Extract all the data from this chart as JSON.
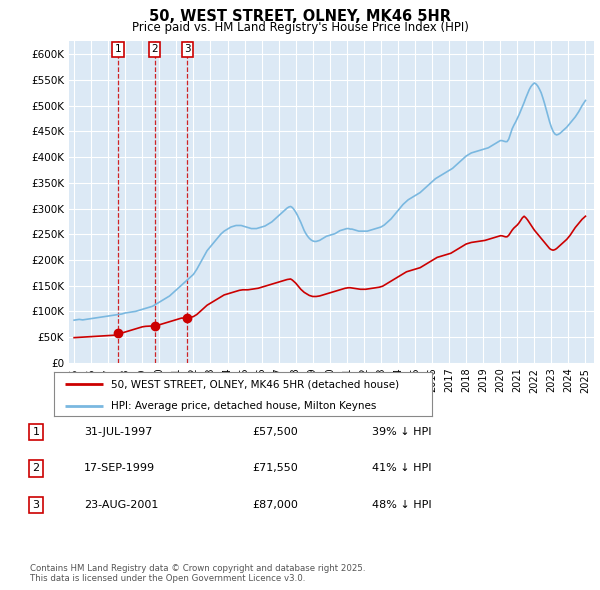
{
  "title": "50, WEST STREET, OLNEY, MK46 5HR",
  "subtitle": "Price paid vs. HM Land Registry's House Price Index (HPI)",
  "ylabel_ticks": [
    "£0",
    "£50K",
    "£100K",
    "£150K",
    "£200K",
    "£250K",
    "£300K",
    "£350K",
    "£400K",
    "£450K",
    "£500K",
    "£550K",
    "£600K"
  ],
  "ylim": [
    0,
    625000
  ],
  "ytick_vals": [
    0,
    50000,
    100000,
    150000,
    200000,
    250000,
    300000,
    350000,
    400000,
    450000,
    500000,
    550000,
    600000
  ],
  "xlim_start": 1994.7,
  "xlim_end": 2025.5,
  "sales": [
    {
      "year": 1997.58,
      "price": 57500,
      "label": "1"
    },
    {
      "year": 1999.72,
      "price": 71550,
      "label": "2"
    },
    {
      "year": 2001.65,
      "price": 87000,
      "label": "3"
    }
  ],
  "hpi_line_color": "#7ab8e0",
  "sale_line_color": "#cc0000",
  "plot_bg_color": "#dce9f5",
  "fig_bg_color": "#ffffff",
  "grid_color": "#ffffff",
  "sale_marker_color": "#cc0000",
  "legend_items": [
    "50, WEST STREET, OLNEY, MK46 5HR (detached house)",
    "HPI: Average price, detached house, Milton Keynes"
  ],
  "table_rows": [
    {
      "num": "1",
      "date": "31-JUL-1997",
      "price": "£57,500",
      "pct": "39% ↓ HPI"
    },
    {
      "num": "2",
      "date": "17-SEP-1999",
      "price": "£71,550",
      "pct": "41% ↓ HPI"
    },
    {
      "num": "3",
      "date": "23-AUG-2001",
      "price": "£87,000",
      "pct": "48% ↓ HPI"
    }
  ],
  "footer": "Contains HM Land Registry data © Crown copyright and database right 2025.\nThis data is licensed under the Open Government Licence v3.0.",
  "xtick_years": [
    1995,
    1996,
    1997,
    1998,
    1999,
    2000,
    2001,
    2002,
    2003,
    2004,
    2005,
    2006,
    2007,
    2008,
    2009,
    2010,
    2011,
    2012,
    2013,
    2014,
    2015,
    2016,
    2017,
    2018,
    2019,
    2020,
    2021,
    2022,
    2023,
    2024,
    2025
  ],
  "hpi_years": [
    1995.0,
    1995.1,
    1995.2,
    1995.3,
    1995.4,
    1995.5,
    1995.6,
    1995.7,
    1995.8,
    1995.9,
    1996.0,
    1996.1,
    1996.2,
    1996.3,
    1996.4,
    1996.5,
    1996.6,
    1996.7,
    1996.8,
    1996.9,
    1997.0,
    1997.1,
    1997.2,
    1997.3,
    1997.4,
    1997.5,
    1997.6,
    1997.7,
    1997.8,
    1997.9,
    1998.0,
    1998.1,
    1998.2,
    1998.3,
    1998.4,
    1998.5,
    1998.6,
    1998.7,
    1998.8,
    1998.9,
    1999.0,
    1999.1,
    1999.2,
    1999.3,
    1999.4,
    1999.5,
    1999.6,
    1999.7,
    1999.8,
    1999.9,
    2000.0,
    2000.1,
    2000.2,
    2000.3,
    2000.4,
    2000.5,
    2000.6,
    2000.7,
    2000.8,
    2000.9,
    2001.0,
    2001.1,
    2001.2,
    2001.3,
    2001.4,
    2001.5,
    2001.6,
    2001.7,
    2001.8,
    2001.9,
    2002.0,
    2002.1,
    2002.2,
    2002.3,
    2002.4,
    2002.5,
    2002.6,
    2002.7,
    2002.8,
    2002.9,
    2003.0,
    2003.1,
    2003.2,
    2003.3,
    2003.4,
    2003.5,
    2003.6,
    2003.7,
    2003.8,
    2003.9,
    2004.0,
    2004.1,
    2004.2,
    2004.3,
    2004.4,
    2004.5,
    2004.6,
    2004.7,
    2004.8,
    2004.9,
    2005.0,
    2005.1,
    2005.2,
    2005.3,
    2005.4,
    2005.5,
    2005.6,
    2005.7,
    2005.8,
    2005.9,
    2006.0,
    2006.1,
    2006.2,
    2006.3,
    2006.4,
    2006.5,
    2006.6,
    2006.7,
    2006.8,
    2006.9,
    2007.0,
    2007.1,
    2007.2,
    2007.3,
    2007.4,
    2007.5,
    2007.6,
    2007.7,
    2007.8,
    2007.9,
    2008.0,
    2008.1,
    2008.2,
    2008.3,
    2008.4,
    2008.5,
    2008.6,
    2008.7,
    2008.8,
    2008.9,
    2009.0,
    2009.1,
    2009.2,
    2009.3,
    2009.4,
    2009.5,
    2009.6,
    2009.7,
    2009.8,
    2009.9,
    2010.0,
    2010.1,
    2010.2,
    2010.3,
    2010.4,
    2010.5,
    2010.6,
    2010.7,
    2010.8,
    2010.9,
    2011.0,
    2011.1,
    2011.2,
    2011.3,
    2011.4,
    2011.5,
    2011.6,
    2011.7,
    2011.8,
    2011.9,
    2012.0,
    2012.1,
    2012.2,
    2012.3,
    2012.4,
    2012.5,
    2012.6,
    2012.7,
    2012.8,
    2012.9,
    2013.0,
    2013.1,
    2013.2,
    2013.3,
    2013.4,
    2013.5,
    2013.6,
    2013.7,
    2013.8,
    2013.9,
    2014.0,
    2014.1,
    2014.2,
    2014.3,
    2014.4,
    2014.5,
    2014.6,
    2014.7,
    2014.8,
    2014.9,
    2015.0,
    2015.1,
    2015.2,
    2015.3,
    2015.4,
    2015.5,
    2015.6,
    2015.7,
    2015.8,
    2015.9,
    2016.0,
    2016.1,
    2016.2,
    2016.3,
    2016.4,
    2016.5,
    2016.6,
    2016.7,
    2016.8,
    2016.9,
    2017.0,
    2017.1,
    2017.2,
    2017.3,
    2017.4,
    2017.5,
    2017.6,
    2017.7,
    2017.8,
    2017.9,
    2018.0,
    2018.1,
    2018.2,
    2018.3,
    2018.4,
    2018.5,
    2018.6,
    2018.7,
    2018.8,
    2018.9,
    2019.0,
    2019.1,
    2019.2,
    2019.3,
    2019.4,
    2019.5,
    2019.6,
    2019.7,
    2019.8,
    2019.9,
    2020.0,
    2020.1,
    2020.2,
    2020.3,
    2020.4,
    2020.5,
    2020.6,
    2020.7,
    2020.8,
    2020.9,
    2021.0,
    2021.1,
    2021.2,
    2021.3,
    2021.4,
    2021.5,
    2021.6,
    2021.7,
    2021.8,
    2021.9,
    2022.0,
    2022.1,
    2022.2,
    2022.3,
    2022.4,
    2022.5,
    2022.6,
    2022.7,
    2022.8,
    2022.9,
    2023.0,
    2023.1,
    2023.2,
    2023.3,
    2023.4,
    2023.5,
    2023.6,
    2023.7,
    2023.8,
    2023.9,
    2024.0,
    2024.1,
    2024.2,
    2024.3,
    2024.4,
    2024.5,
    2024.6,
    2024.7,
    2024.8,
    2024.9,
    2025.0
  ],
  "hpi_values": [
    83000,
    83500,
    84000,
    84500,
    84000,
    83500,
    84000,
    84500,
    85000,
    85500,
    86000,
    86500,
    87000,
    87500,
    88000,
    88500,
    89000,
    89500,
    90000,
    90500,
    91000,
    91500,
    92000,
    92500,
    93000,
    93500,
    94000,
    94500,
    95000,
    96000,
    97000,
    97500,
    98000,
    98500,
    99000,
    99500,
    100000,
    101000,
    102000,
    103000,
    104000,
    105000,
    106000,
    107000,
    108000,
    109000,
    110000,
    112000,
    114000,
    116000,
    118000,
    120000,
    122000,
    124000,
    126000,
    128000,
    130000,
    133000,
    136000,
    139000,
    142000,
    145000,
    148000,
    151000,
    154000,
    157000,
    160000,
    163000,
    166000,
    169000,
    172000,
    177000,
    182000,
    188000,
    194000,
    200000,
    206000,
    212000,
    218000,
    222000,
    226000,
    230000,
    234000,
    238000,
    242000,
    246000,
    250000,
    253000,
    256000,
    258000,
    260000,
    262000,
    264000,
    265000,
    266000,
    267000,
    267000,
    267000,
    267000,
    266000,
    265000,
    264000,
    263000,
    262000,
    261000,
    261000,
    261000,
    261000,
    262000,
    263000,
    264000,
    265000,
    266000,
    268000,
    270000,
    272000,
    274000,
    277000,
    280000,
    283000,
    286000,
    289000,
    292000,
    295000,
    298000,
    301000,
    303000,
    304000,
    302000,
    298000,
    293000,
    287000,
    280000,
    273000,
    265000,
    257000,
    251000,
    246000,
    242000,
    239000,
    237000,
    236000,
    236000,
    237000,
    238000,
    240000,
    242000,
    244000,
    246000,
    247000,
    248000,
    249000,
    250000,
    251000,
    253000,
    255000,
    257000,
    258000,
    259000,
    260000,
    261000,
    261000,
    260000,
    260000,
    259000,
    258000,
    257000,
    256000,
    256000,
    256000,
    256000,
    256000,
    256000,
    257000,
    258000,
    259000,
    260000,
    261000,
    262000,
    263000,
    264000,
    266000,
    268000,
    271000,
    274000,
    277000,
    280000,
    284000,
    288000,
    292000,
    296000,
    300000,
    304000,
    308000,
    311000,
    314000,
    317000,
    319000,
    321000,
    323000,
    325000,
    327000,
    329000,
    331000,
    334000,
    337000,
    340000,
    343000,
    346000,
    349000,
    352000,
    355000,
    358000,
    360000,
    362000,
    364000,
    366000,
    368000,
    370000,
    372000,
    374000,
    376000,
    378000,
    381000,
    384000,
    387000,
    390000,
    393000,
    396000,
    399000,
    402000,
    404000,
    406000,
    408000,
    409000,
    410000,
    411000,
    412000,
    413000,
    414000,
    415000,
    416000,
    417000,
    418000,
    420000,
    422000,
    424000,
    426000,
    428000,
    430000,
    432000,
    432000,
    431000,
    430000,
    430000,
    435000,
    445000,
    455000,
    462000,
    468000,
    475000,
    482000,
    490000,
    498000,
    506000,
    515000,
    523000,
    531000,
    537000,
    541000,
    544000,
    542000,
    538000,
    532000,
    525000,
    515000,
    504000,
    492000,
    480000,
    468000,
    458000,
    450000,
    445000,
    443000,
    444000,
    446000,
    449000,
    452000,
    455000,
    458000,
    462000,
    466000,
    470000,
    474000,
    478000,
    483000,
    488000,
    494000,
    500000,
    505000,
    510000
  ],
  "red_years": [
    1995.0,
    1995.1,
    1995.2,
    1995.3,
    1995.4,
    1995.5,
    1995.6,
    1995.7,
    1995.8,
    1995.9,
    1996.0,
    1996.1,
    1996.2,
    1996.3,
    1996.4,
    1996.5,
    1996.6,
    1996.7,
    1996.8,
    1996.9,
    1997.0,
    1997.1,
    1997.2,
    1997.3,
    1997.4,
    1997.5,
    1997.6,
    1997.7,
    1997.8,
    1997.9,
    1998.0,
    1998.1,
    1998.2,
    1998.3,
    1998.4,
    1998.5,
    1998.6,
    1998.7,
    1998.8,
    1998.9,
    1999.0,
    1999.1,
    1999.2,
    1999.3,
    1999.4,
    1999.5,
    1999.6,
    1999.7,
    1999.8,
    1999.9,
    2000.0,
    2000.1,
    2000.2,
    2000.3,
    2000.4,
    2000.5,
    2000.6,
    2000.7,
    2000.8,
    2000.9,
    2001.0,
    2001.1,
    2001.2,
    2001.3,
    2001.4,
    2001.5,
    2001.6,
    2001.7,
    2001.8,
    2001.9,
    2002.0,
    2002.1,
    2002.2,
    2002.3,
    2002.4,
    2002.5,
    2002.6,
    2002.7,
    2002.8,
    2002.9,
    2003.0,
    2003.1,
    2003.2,
    2003.3,
    2003.4,
    2003.5,
    2003.6,
    2003.7,
    2003.8,
    2003.9,
    2004.0,
    2004.1,
    2004.2,
    2004.3,
    2004.4,
    2004.5,
    2004.6,
    2004.7,
    2004.8,
    2004.9,
    2005.0,
    2005.1,
    2005.2,
    2005.3,
    2005.4,
    2005.5,
    2005.6,
    2005.7,
    2005.8,
    2005.9,
    2006.0,
    2006.1,
    2006.2,
    2006.3,
    2006.4,
    2006.5,
    2006.6,
    2006.7,
    2006.8,
    2006.9,
    2007.0,
    2007.1,
    2007.2,
    2007.3,
    2007.4,
    2007.5,
    2007.6,
    2007.7,
    2007.8,
    2007.9,
    2008.0,
    2008.1,
    2008.2,
    2008.3,
    2008.4,
    2008.5,
    2008.6,
    2008.7,
    2008.8,
    2008.9,
    2009.0,
    2009.1,
    2009.2,
    2009.3,
    2009.4,
    2009.5,
    2009.6,
    2009.7,
    2009.8,
    2009.9,
    2010.0,
    2010.1,
    2010.2,
    2010.3,
    2010.4,
    2010.5,
    2010.6,
    2010.7,
    2010.8,
    2010.9,
    2011.0,
    2011.1,
    2011.2,
    2011.3,
    2011.4,
    2011.5,
    2011.6,
    2011.7,
    2011.8,
    2011.9,
    2012.0,
    2012.1,
    2012.2,
    2012.3,
    2012.4,
    2012.5,
    2012.6,
    2012.7,
    2012.8,
    2012.9,
    2013.0,
    2013.1,
    2013.2,
    2013.3,
    2013.4,
    2013.5,
    2013.6,
    2013.7,
    2013.8,
    2013.9,
    2014.0,
    2014.1,
    2014.2,
    2014.3,
    2014.4,
    2014.5,
    2014.6,
    2014.7,
    2014.8,
    2014.9,
    2015.0,
    2015.1,
    2015.2,
    2015.3,
    2015.4,
    2015.5,
    2015.6,
    2015.7,
    2015.8,
    2015.9,
    2016.0,
    2016.1,
    2016.2,
    2016.3,
    2016.4,
    2016.5,
    2016.6,
    2016.7,
    2016.8,
    2016.9,
    2017.0,
    2017.1,
    2017.2,
    2017.3,
    2017.4,
    2017.5,
    2017.6,
    2017.7,
    2017.8,
    2017.9,
    2018.0,
    2018.1,
    2018.2,
    2018.3,
    2018.4,
    2018.5,
    2018.6,
    2018.7,
    2018.8,
    2018.9,
    2019.0,
    2019.1,
    2019.2,
    2019.3,
    2019.4,
    2019.5,
    2019.6,
    2019.7,
    2019.8,
    2019.9,
    2020.0,
    2020.1,
    2020.2,
    2020.3,
    2020.4,
    2020.5,
    2020.6,
    2020.7,
    2020.8,
    2020.9,
    2021.0,
    2021.1,
    2021.2,
    2021.3,
    2021.4,
    2021.5,
    2021.6,
    2021.7,
    2021.8,
    2021.9,
    2022.0,
    2022.1,
    2022.2,
    2022.3,
    2022.4,
    2022.5,
    2022.6,
    2022.7,
    2022.8,
    2022.9,
    2023.0,
    2023.1,
    2023.2,
    2023.3,
    2023.4,
    2023.5,
    2023.6,
    2023.7,
    2023.8,
    2023.9,
    2024.0,
    2024.1,
    2024.2,
    2024.3,
    2024.4,
    2024.5,
    2024.6,
    2024.7,
    2024.8,
    2024.9,
    2025.0
  ],
  "red_values": [
    49000,
    49200,
    49400,
    49600,
    49800,
    50000,
    50200,
    50400,
    50600,
    50800,
    51000,
    51200,
    51400,
    51600,
    51800,
    52000,
    52200,
    52400,
    52600,
    52800,
    53000,
    53200,
    53400,
    53600,
    53800,
    54000,
    57500,
    57500,
    58000,
    59000,
    60000,
    61000,
    62000,
    63000,
    64000,
    65000,
    66000,
    67000,
    68000,
    69000,
    70000,
    70500,
    71000,
    71200,
    71400,
    71550,
    71550,
    71550,
    72000,
    73000,
    74000,
    75000,
    76000,
    77000,
    78000,
    79000,
    80000,
    81000,
    82000,
    83000,
    84000,
    85000,
    86000,
    87000,
    87000,
    87000,
    87000,
    87500,
    88000,
    89000,
    90000,
    92000,
    94000,
    97000,
    100000,
    103000,
    106000,
    109000,
    112000,
    114000,
    116000,
    118000,
    120000,
    122000,
    124000,
    126000,
    128000,
    130000,
    132000,
    133000,
    134000,
    135000,
    136000,
    137000,
    138000,
    139000,
    140000,
    141000,
    141500,
    142000,
    142000,
    142000,
    142000,
    142500,
    143000,
    143500,
    144000,
    144500,
    145000,
    146000,
    147000,
    148000,
    149000,
    150000,
    151000,
    152000,
    153000,
    154000,
    155000,
    156000,
    157000,
    158000,
    159000,
    160000,
    161000,
    162000,
    162500,
    163000,
    161000,
    158000,
    155000,
    151000,
    147000,
    143000,
    140000,
    137000,
    135000,
    133000,
    131000,
    130000,
    129000,
    129000,
    129000,
    129500,
    130000,
    131000,
    132000,
    133000,
    134000,
    135000,
    136000,
    137000,
    138000,
    139000,
    140000,
    141000,
    142000,
    143000,
    144000,
    145000,
    145500,
    146000,
    146000,
    145500,
    145000,
    144500,
    144000,
    143500,
    143000,
    143000,
    143000,
    143000,
    143500,
    144000,
    144500,
    145000,
    145500,
    146000,
    146500,
    147000,
    148000,
    149000,
    151000,
    153000,
    155000,
    157000,
    159000,
    161000,
    163000,
    165000,
    167000,
    169000,
    171000,
    173000,
    175000,
    177000,
    178000,
    179000,
    180000,
    181000,
    182000,
    183000,
    184000,
    185000,
    187000,
    189000,
    191000,
    193000,
    195000,
    197000,
    199000,
    201000,
    203000,
    205000,
    206000,
    207000,
    208000,
    209000,
    210000,
    211000,
    212000,
    213000,
    215000,
    217000,
    219000,
    221000,
    223000,
    225000,
    227000,
    229000,
    231000,
    232000,
    233000,
    234000,
    234500,
    235000,
    235500,
    236000,
    236500,
    237000,
    237500,
    238000,
    239000,
    240000,
    241000,
    242000,
    243000,
    244000,
    245000,
    246000,
    247000,
    247000,
    246000,
    245000,
    245000,
    248000,
    253000,
    258000,
    262000,
    265000,
    268000,
    272000,
    277000,
    282000,
    285000,
    282000,
    278000,
    273000,
    268000,
    263000,
    258000,
    254000,
    250000,
    246000,
    242000,
    238000,
    234000,
    230000,
    226000,
    222000,
    220000,
    219000,
    220000,
    222000,
    225000,
    228000,
    231000,
    234000,
    237000,
    240000,
    244000,
    248000,
    253000,
    258000,
    263000,
    267000,
    271000,
    275000,
    279000,
    282000,
    285000
  ]
}
